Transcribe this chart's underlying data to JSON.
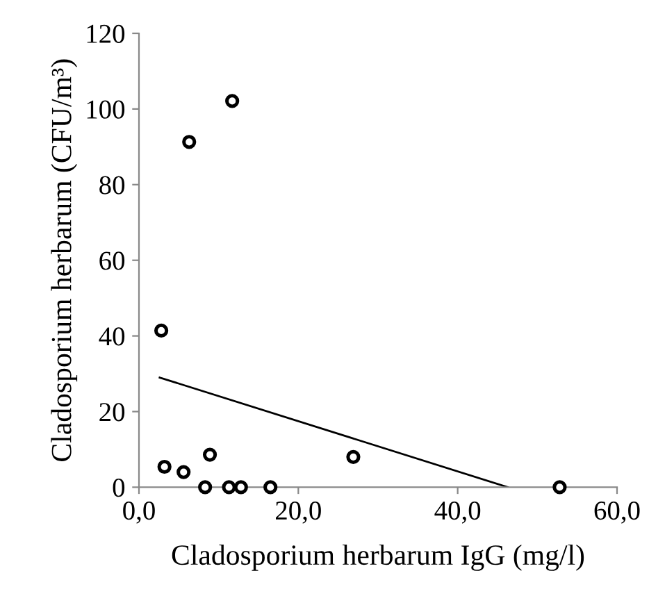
{
  "chart_data": {
    "type": "scatter",
    "xlabel": "Cladosporium herbarum IgG (mg/l)",
    "ylabel": "Cladosporium herbarum (CFU/m³)",
    "x": [
      2.8,
      6.3,
      11.7,
      3.2,
      5.6,
      8.9,
      8.3,
      11.3,
      12.8,
      16.5,
      26.9,
      52.8
    ],
    "series": [
      {
        "color": "#000000",
        "marker": "circle",
        "values": [
          41.4,
          91.3,
          102.1,
          5.4,
          4.0,
          8.6,
          0,
          0,
          0,
          0,
          8.0,
          0
        ]
      },
      {
        "type": "line",
        "color": "#000000",
        "marker": "none",
        "x": [
          2.6,
          46.3
        ],
        "values": [
          29.0,
          0
        ]
      }
    ],
    "xlim": [
      0,
      60
    ],
    "xticks": [
      {
        "value": 0,
        "label": "0,0"
      },
      {
        "value": 20,
        "label": "20,0"
      },
      {
        "value": 40,
        "label": "40,0"
      },
      {
        "value": 60,
        "label": "60,0"
      }
    ],
    "ylim": [
      0,
      120
    ],
    "yticks": [
      0,
      20,
      40,
      60,
      80,
      100,
      120
    ],
    "grid": false,
    "legend": false
  }
}
